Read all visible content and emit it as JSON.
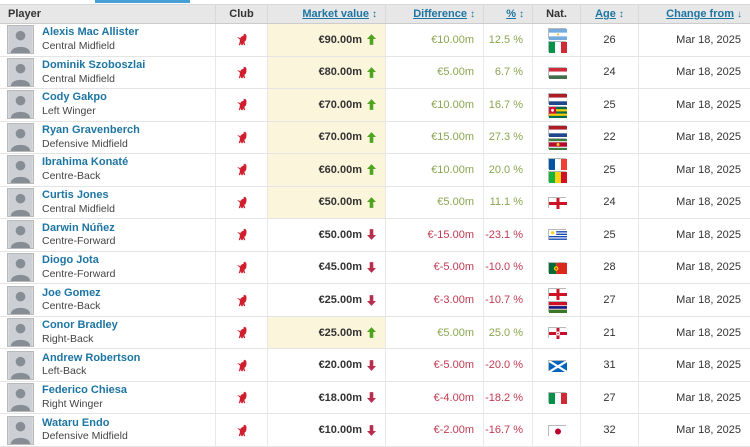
{
  "page": {
    "accent_blue": "#1d75a3",
    "tab_indicator_color": "#46a0d6"
  },
  "colors": {
    "positive_text": "#89a64e",
    "negative_text": "#c03a52",
    "arrow_up": "#4ea31f",
    "arrow_down": "#b92d4c",
    "value_up_cell_bg": "#fbf5dc",
    "header_bg": "#e7e7e7",
    "crest_red": "#d01e2f"
  },
  "table": {
    "headers": {
      "player": "Player",
      "club": "Club",
      "market_value": "Market value",
      "difference": "Difference",
      "percent": "%",
      "nat": "Nat.",
      "age": "Age",
      "change_from": "Change from",
      "sort_both_icon": "↕",
      "sort_down_icon": "↓"
    },
    "rows": [
      {
        "name": "Alexis Mac Allister",
        "position": "Central Midfield",
        "club": "Liverpool FC",
        "market_value": "€90.00m",
        "trend": "up",
        "difference": "€10.00m",
        "percent": "12.5 %",
        "nationalities": [
          "Argentina",
          "Italy"
        ],
        "age": "26",
        "change_from": "Mar 18, 2025"
      },
      {
        "name": "Dominik Szoboszlai",
        "position": "Central Midfield",
        "club": "Liverpool FC",
        "market_value": "€80.00m",
        "trend": "up",
        "difference": "€5.00m",
        "percent": "6.7 %",
        "nationalities": [
          "Hungary"
        ],
        "age": "24",
        "change_from": "Mar 18, 2025"
      },
      {
        "name": "Cody Gakpo",
        "position": "Left Winger",
        "club": "Liverpool FC",
        "market_value": "€70.00m",
        "trend": "up",
        "difference": "€10.00m",
        "percent": "16.7 %",
        "nationalities": [
          "Netherlands",
          "Togo"
        ],
        "age": "25",
        "change_from": "Mar 18, 2025"
      },
      {
        "name": "Ryan Gravenberch",
        "position": "Defensive Midfield",
        "club": "Liverpool FC",
        "market_value": "€70.00m",
        "trend": "up",
        "difference": "€15.00m",
        "percent": "27.3 %",
        "nationalities": [
          "Netherlands",
          "Suriname"
        ],
        "age": "22",
        "change_from": "Mar 18, 2025"
      },
      {
        "name": "Ibrahima Konaté",
        "position": "Centre-Back",
        "club": "Liverpool FC",
        "market_value": "€60.00m",
        "trend": "up",
        "difference": "€10.00m",
        "percent": "20.0 %",
        "nationalities": [
          "France",
          "Mali"
        ],
        "age": "25",
        "change_from": "Mar 18, 2025"
      },
      {
        "name": "Curtis Jones",
        "position": "Central Midfield",
        "club": "Liverpool FC",
        "market_value": "€50.00m",
        "trend": "up",
        "difference": "€5.00m",
        "percent": "11.1 %",
        "nationalities": [
          "England"
        ],
        "age": "24",
        "change_from": "Mar 18, 2025"
      },
      {
        "name": "Darwin Núñez",
        "position": "Centre-Forward",
        "club": "Liverpool FC",
        "market_value": "€50.00m",
        "trend": "down",
        "difference": "€-15.00m",
        "percent": "-23.1 %",
        "nationalities": [
          "Uruguay"
        ],
        "age": "25",
        "change_from": "Mar 18, 2025"
      },
      {
        "name": "Diogo Jota",
        "position": "Centre-Forward",
        "club": "Liverpool FC",
        "market_value": "€45.00m",
        "trend": "down",
        "difference": "€-5.00m",
        "percent": "-10.0 %",
        "nationalities": [
          "Portugal"
        ],
        "age": "28",
        "change_from": "Mar 18, 2025"
      },
      {
        "name": "Joe Gomez",
        "position": "Centre-Back",
        "club": "Liverpool FC",
        "market_value": "€25.00m",
        "trend": "down",
        "difference": "€-3.00m",
        "percent": "-10.7 %",
        "nationalities": [
          "England",
          "Gambia"
        ],
        "age": "27",
        "change_from": "Mar 18, 2025"
      },
      {
        "name": "Conor Bradley",
        "position": "Right-Back",
        "club": "Liverpool FC",
        "market_value": "€25.00m",
        "trend": "up",
        "difference": "€5.00m",
        "percent": "25.0 %",
        "nationalities": [
          "Northern Ireland"
        ],
        "age": "21",
        "change_from": "Mar 18, 2025"
      },
      {
        "name": "Andrew Robertson",
        "position": "Left-Back",
        "club": "Liverpool FC",
        "market_value": "€20.00m",
        "trend": "down",
        "difference": "€-5.00m",
        "percent": "-20.0 %",
        "nationalities": [
          "Scotland"
        ],
        "age": "31",
        "change_from": "Mar 18, 2025"
      },
      {
        "name": "Federico Chiesa",
        "position": "Right Winger",
        "club": "Liverpool FC",
        "market_value": "€18.00m",
        "trend": "down",
        "difference": "€-4.00m",
        "percent": "-18.2 %",
        "nationalities": [
          "Italy"
        ],
        "age": "27",
        "change_from": "Mar 18, 2025"
      },
      {
        "name": "Wataru Endo",
        "position": "Defensive Midfield",
        "club": "Liverpool FC",
        "market_value": "€10.00m",
        "trend": "down",
        "difference": "€-2.00m",
        "percent": "-16.7 %",
        "nationalities": [
          "Japan"
        ],
        "age": "32",
        "change_from": "Mar 18, 2025"
      }
    ]
  }
}
